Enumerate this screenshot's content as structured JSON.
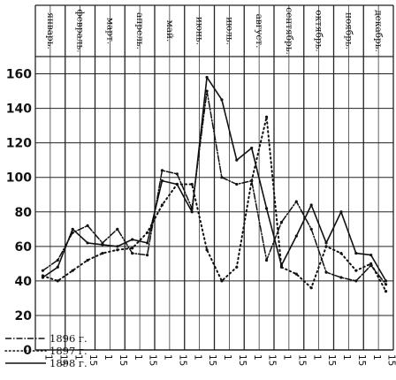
{
  "chart_data": {
    "type": "line",
    "months": [
      "Январь",
      "Февраль",
      "Март",
      "Апрель",
      "Май",
      "Июнь",
      "Июль",
      "Август",
      "Сентябрь",
      "Октябрь",
      "Ноябрь",
      "Декабрь"
    ],
    "month_boxes": [
      "январь.",
      "февраль.",
      "март.",
      "апрель.",
      "май.",
      "июнь.",
      "июль.",
      "август.",
      "сентябрь.",
      "октябрь.",
      "ноябрь.",
      "декабрь."
    ],
    "x_day_labels": [
      "1",
      "15",
      "1",
      "15",
      "1",
      "15",
      "1",
      "15",
      "1",
      "15",
      "1",
      "15",
      "1",
      "15",
      "1",
      "15",
      "1",
      "15",
      "1",
      "15",
      "1",
      "15",
      "1",
      "15"
    ],
    "y_ticks": [
      "0",
      "20",
      "40",
      "60",
      "80",
      "100",
      "120",
      "140",
      "160"
    ],
    "ylim": [
      0,
      170
    ],
    "x_points": [
      "1 янв.",
      "15 янв.",
      "1 фев.",
      "15 фев.",
      "1 мар.",
      "15 мар.",
      "1 апр.",
      "15 апр.",
      "1 мая",
      "15 мая",
      "1 июня",
      "15 июня",
      "1 июля",
      "15 июля",
      "1 авг.",
      "15 авг.",
      "1 сент.",
      "15 сент.",
      "1 окт.",
      "15 окт.",
      "1 нояб.",
      "15 нояб.",
      "1 дек.",
      "15 дек."
    ],
    "series": [
      {
        "name": "1896 г.",
        "style": "dash-dot",
        "values": [
          46,
          52,
          68,
          72,
          62,
          70,
          56,
          55,
          104,
          102,
          82,
          150,
          100,
          96,
          98,
          52,
          74,
          86,
          70,
          45,
          42,
          40,
          49,
          38
        ]
      },
      {
        "name": "1897 г.",
        "style": "dotted",
        "values": [
          43,
          40,
          46,
          52,
          56,
          58,
          59,
          68,
          84,
          96,
          96,
          58,
          40,
          48,
          98,
          135,
          48,
          44,
          36,
          60,
          56,
          46,
          50,
          34
        ]
      },
      {
        "name": "1898 г.",
        "style": "solid",
        "values": [
          42,
          48,
          70,
          62,
          61,
          60,
          64,
          62,
          98,
          96,
          80,
          158,
          145,
          110,
          117,
          82,
          49,
          66,
          84,
          62,
          80,
          56,
          55,
          40
        ]
      }
    ]
  },
  "legend": [
    {
      "label": "1896 г.",
      "style": "dash-dot"
    },
    {
      "label": "1897 г.",
      "style": "dotted"
    },
    {
      "label": "1898 г.",
      "style": "solid"
    }
  ]
}
